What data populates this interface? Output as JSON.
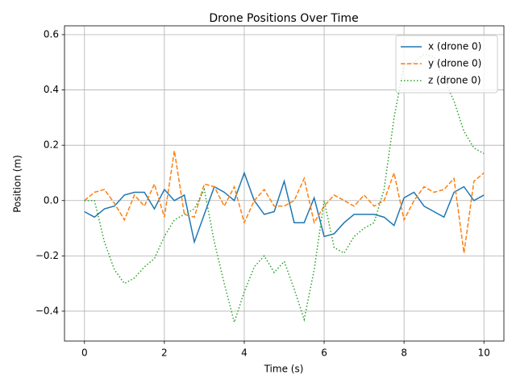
{
  "chart_data": {
    "type": "line",
    "title": "Drone Positions Over Time",
    "x_label": "Time (s)",
    "y_label": "Position (m)",
    "x": [
      0,
      0.25,
      0.5,
      0.75,
      1,
      1.25,
      1.5,
      1.75,
      2,
      2.25,
      2.5,
      2.75,
      3,
      3.25,
      3.5,
      3.75,
      4,
      4.25,
      4.5,
      4.75,
      5,
      5.25,
      5.5,
      5.75,
      6,
      6.25,
      6.5,
      6.75,
      7,
      7.25,
      7.5,
      7.75,
      8,
      8.25,
      8.5,
      8.75,
      9,
      9.25,
      9.5,
      9.75,
      10
    ],
    "series": [
      {
        "name": "x (drone 0)",
        "color": "#1f77b4",
        "linestyle": "solid",
        "values": [
          -0.04,
          -0.06,
          -0.03,
          -0.02,
          0.02,
          0.03,
          0.03,
          -0.03,
          0.04,
          0.0,
          0.02,
          -0.15,
          -0.05,
          0.05,
          0.03,
          0.0,
          0.1,
          0.0,
          -0.05,
          -0.04,
          0.07,
          -0.08,
          -0.08,
          0.01,
          -0.13,
          -0.12,
          -0.08,
          -0.05,
          -0.05,
          -0.05,
          -0.06,
          -0.09,
          0.01,
          0.03,
          -0.02,
          -0.04,
          -0.06,
          0.03,
          0.05,
          0.0,
          0.02
        ]
      },
      {
        "name": "y (drone 0)",
        "color": "#ff7f0e",
        "linestyle": "dashed",
        "values": [
          0.0,
          0.03,
          0.04,
          -0.01,
          -0.07,
          0.02,
          -0.02,
          0.06,
          -0.06,
          0.18,
          -0.05,
          -0.06,
          0.06,
          0.05,
          -0.02,
          0.05,
          -0.08,
          0.0,
          0.04,
          -0.02,
          -0.02,
          0.0,
          0.08,
          -0.08,
          -0.02,
          0.02,
          0.0,
          -0.02,
          0.02,
          -0.02,
          0.0,
          0.1,
          -0.07,
          0.0,
          0.05,
          0.03,
          0.04,
          0.08,
          -0.19,
          0.07,
          0.1
        ]
      },
      {
        "name": "z (drone 0)",
        "color": "#2ca02c",
        "linestyle": "dotted",
        "values": [
          0.0,
          0.0,
          -0.15,
          -0.25,
          -0.3,
          -0.28,
          -0.24,
          -0.21,
          -0.13,
          -0.07,
          -0.05,
          -0.03,
          0.04,
          -0.15,
          -0.3,
          -0.44,
          -0.33,
          -0.24,
          -0.2,
          -0.26,
          -0.22,
          -0.32,
          -0.43,
          -0.25,
          0.0,
          -0.17,
          -0.19,
          -0.13,
          -0.1,
          -0.08,
          0.04,
          0.3,
          0.49,
          0.5,
          0.53,
          0.52,
          0.44,
          0.36,
          0.25,
          0.19,
          0.17
        ]
      }
    ],
    "xlim": [
      -0.5,
      10.5
    ],
    "xticks": [
      0,
      2,
      4,
      6,
      8,
      10
    ],
    "ylim": [
      -0.508,
      0.632
    ],
    "yticks": [
      {
        "value": -0.4,
        "label": "−0.4"
      },
      {
        "value": -0.2,
        "label": "−0.2"
      },
      {
        "value": 0,
        "label": "0.0"
      },
      {
        "value": 0.2,
        "label": "0.2"
      },
      {
        "value": 0.4,
        "label": "0.4"
      },
      {
        "value": 0.6,
        "label": "0.6"
      }
    ],
    "grid": true,
    "legend": "upper right"
  }
}
